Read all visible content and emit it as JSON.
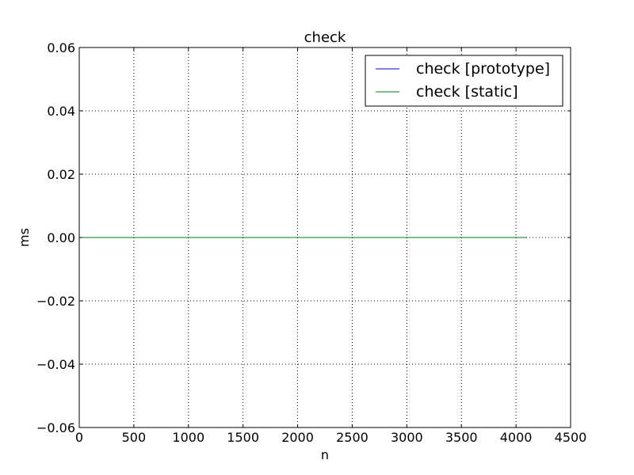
{
  "chart_data": {
    "type": "line",
    "title": "check",
    "xlabel": "n",
    "ylabel": "ms",
    "xlim": [
      0,
      4500
    ],
    "ylim": [
      -0.06,
      0.06
    ],
    "xticks": [
      0,
      500,
      1000,
      1500,
      2000,
      2500,
      3000,
      3500,
      4000,
      4500
    ],
    "xtick_labels": [
      "0",
      "500",
      "1000",
      "1500",
      "2000",
      "2500",
      "3000",
      "3500",
      "4000",
      "4500"
    ],
    "yticks": [
      -0.06,
      -0.04,
      -0.02,
      0.0,
      0.02,
      0.04,
      0.06
    ],
    "ytick_labels": [
      "−0.06",
      "−0.04",
      "−0.02",
      "0.00",
      "0.02",
      "0.04",
      "0.06"
    ],
    "grid": true,
    "legend_position": "top-right",
    "series": [
      {
        "name": "check [prototype]",
        "color": "#0000ff",
        "x": [
          16,
          4096
        ],
        "y": [
          0.0,
          0.0
        ]
      },
      {
        "name": "check [static]",
        "color": "#008000",
        "x": [
          16,
          4096
        ],
        "y": [
          0.0,
          0.0
        ]
      }
    ]
  }
}
